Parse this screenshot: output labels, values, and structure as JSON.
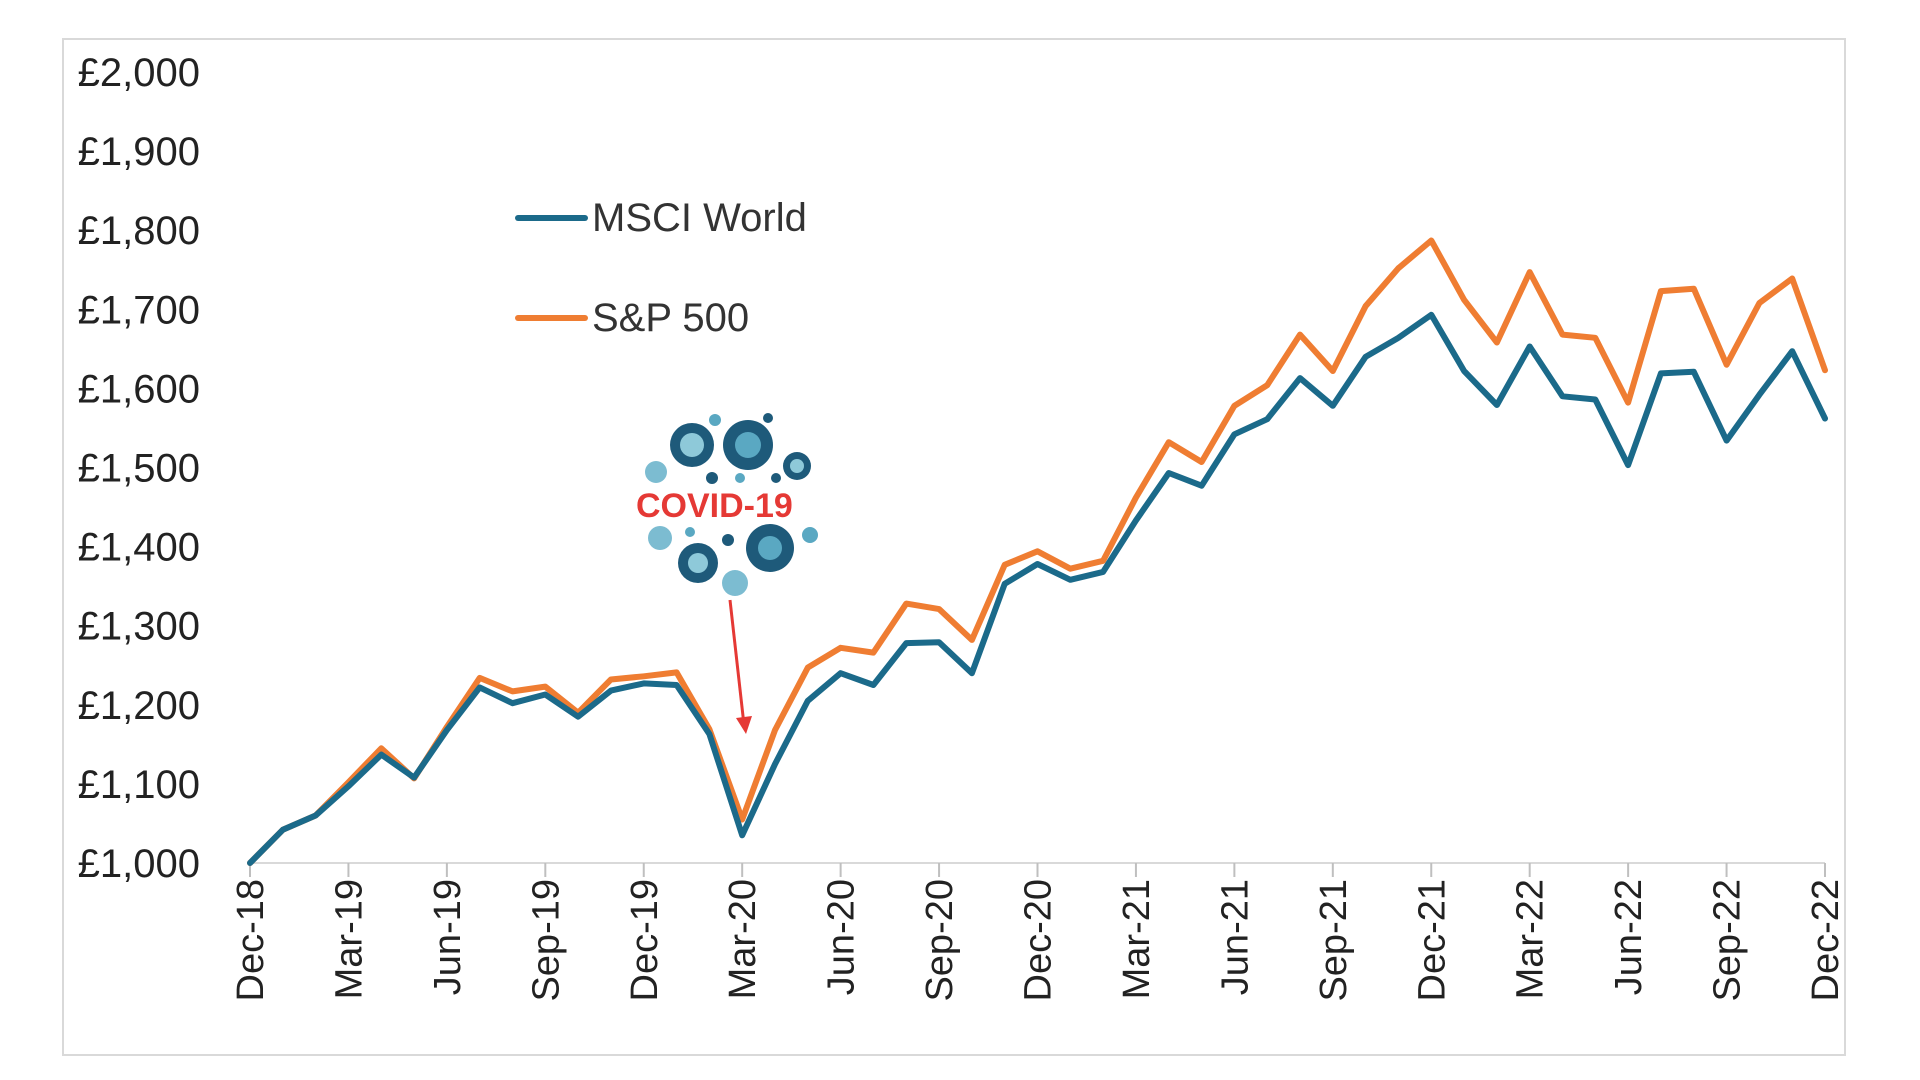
{
  "chart_data": {
    "type": "line",
    "title": "",
    "xlabel": "",
    "ylabel": "",
    "ylim": [
      1000,
      2000
    ],
    "y_ticks": [
      "£1,000",
      "£1,100",
      "£1,200",
      "£1,300",
      "£1,400",
      "£1,500",
      "£1,600",
      "£1,700",
      "£1,800",
      "£1,900",
      "£2,000"
    ],
    "y_tick_values": [
      1000,
      1100,
      1200,
      1300,
      1400,
      1500,
      1600,
      1700,
      1800,
      1900,
      2000
    ],
    "x_tick_labels": [
      "Dec-18",
      "Mar-19",
      "Jun-19",
      "Sep-19",
      "Dec-19",
      "Mar-20",
      "Jun-20",
      "Sep-20",
      "Dec-20",
      "Mar-21",
      "Jun-21",
      "Sep-21",
      "Dec-21",
      "Mar-22",
      "Jun-22",
      "Sep-22",
      "Dec-22"
    ],
    "x_tick_months": [
      0,
      3,
      6,
      9,
      12,
      15,
      18,
      21,
      24,
      27,
      30,
      33,
      36,
      39,
      42,
      45,
      48
    ],
    "x_month_count": 49,
    "legend_position": "top-left",
    "grid": false,
    "annotation": {
      "label": "COVID-19",
      "points_to": "Mar-20"
    },
    "series": [
      {
        "name": "MSCI World",
        "color": "#1b6a8a",
        "values": [
          1000,
          1042,
          1060,
          1097,
          1137,
          1108,
          1168,
          1222,
          1202,
          1213,
          1185,
          1218,
          1227,
          1225,
          1163,
          1035,
          1125,
          1205,
          1240,
          1225,
          1278,
          1279,
          1240,
          1353,
          1378,
          1358,
          1368,
          1433,
          1493,
          1477,
          1542,
          1561,
          1613,
          1578,
          1640,
          1664,
          1693,
          1622,
          1579,
          1653,
          1590,
          1586,
          1503,
          1619,
          1621,
          1534,
          1592,
          1647,
          1562
        ]
      },
      {
        "name": "S&P 500",
        "color": "#ef7d32",
        "values": [
          1000,
          1042,
          1060,
          1102,
          1145,
          1107,
          1172,
          1234,
          1217,
          1223,
          1190,
          1232,
          1236,
          1241,
          1169,
          1055,
          1168,
          1247,
          1272,
          1266,
          1328,
          1321,
          1282,
          1377,
          1394,
          1372,
          1382,
          1462,
          1532,
          1507,
          1578,
          1604,
          1668,
          1622,
          1704,
          1752,
          1787,
          1712,
          1658,
          1747,
          1668,
          1664,
          1582,
          1723,
          1726,
          1630,
          1708,
          1739,
          1623
        ]
      }
    ]
  }
}
